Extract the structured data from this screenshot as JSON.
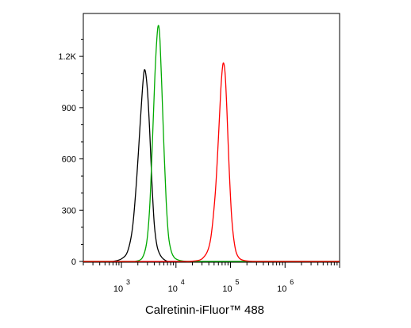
{
  "chart_data": {
    "type": "line",
    "title": "",
    "xlabel": "Calretinin-iFluor™ 488",
    "ylabel": "",
    "x_scale": "log",
    "xlim": [
      200,
      10000000
    ],
    "ylim": [
      0,
      1400
    ],
    "y_ticks": [
      0,
      300,
      600,
      900,
      1200
    ],
    "y_tick_labels": [
      "0",
      "300",
      "600",
      "900",
      "1.2K"
    ],
    "x_ticks": [
      1000,
      10000,
      100000,
      1000000
    ],
    "x_tick_bases": [
      "10",
      "10",
      "10",
      "10"
    ],
    "x_tick_exponents": [
      "3",
      "4",
      "5",
      "6"
    ],
    "grid": false,
    "legend": "none",
    "series": [
      {
        "color": "#000000",
        "x": [
          700,
          1000,
          1300,
          1600,
          1900,
          2200,
          2500,
          2700,
          3000,
          3300,
          3600,
          4000,
          4500,
          5200,
          6000,
          7000
        ],
        "y": [
          0,
          15,
          60,
          200,
          480,
          800,
          1060,
          1120,
          1000,
          760,
          480,
          220,
          90,
          35,
          12,
          0
        ]
      },
      {
        "color": "#00aa00",
        "x": [
          1800,
          2400,
          2900,
          3300,
          3700,
          4100,
          4500,
          4800,
          5100,
          5500,
          6000,
          6600,
          7300,
          8200,
          9500,
          12000,
          16000
        ],
        "y": [
          0,
          20,
          110,
          320,
          700,
          1080,
          1320,
          1380,
          1290,
          1020,
          680,
          360,
          150,
          60,
          20,
          5,
          0
        ]
      },
      {
        "color": "#ff0000",
        "x": [
          18000,
          30000,
          42000,
          52000,
          60000,
          66000,
          71000,
          75000,
          80000,
          86000,
          94000,
          105000,
          120000,
          140000,
          180000,
          260000
        ],
        "y": [
          0,
          15,
          110,
          380,
          720,
          990,
          1130,
          1160,
          1090,
          880,
          560,
          260,
          90,
          25,
          5,
          0
        ]
      }
    ]
  }
}
